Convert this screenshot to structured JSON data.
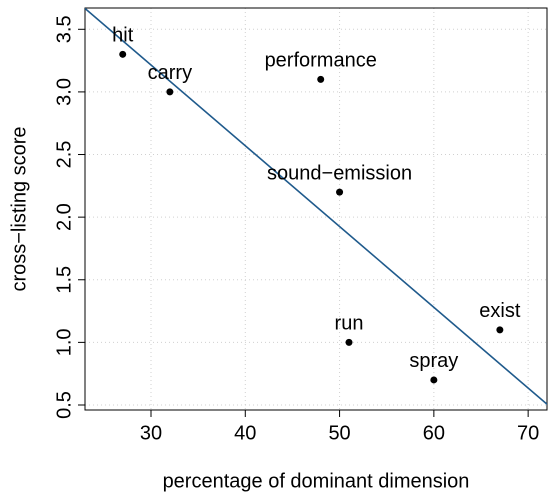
{
  "chart_data": {
    "type": "scatter",
    "xlabel": "percentage of dominant dimension",
    "ylabel": "cross−listing score",
    "labels": [
      "hit",
      "carry",
      "performance",
      "sound−emission",
      "run",
      "exist",
      "spray"
    ],
    "x": [
      27,
      32,
      48,
      50,
      51,
      67,
      60
    ],
    "y": [
      3.3,
      3.0,
      3.1,
      2.2,
      1.0,
      1.1,
      0.7
    ],
    "color": "#000000",
    "fit": {
      "intercept": 5.15,
      "slope": -0.0645,
      "color": "#1f5a8c"
    },
    "xlim": [
      23,
      72
    ],
    "ylim": [
      0.46,
      3.67
    ],
    "xticks": [
      30,
      40,
      50,
      60,
      70
    ],
    "yticks": [
      0.5,
      {
        "value": 1,
        "label": "1.0"
      },
      1.5,
      {
        "value": 2,
        "label": "2.0"
      },
      2.5,
      {
        "value": 3,
        "label": "3.0"
      },
      3.5
    ],
    "grid": true
  }
}
